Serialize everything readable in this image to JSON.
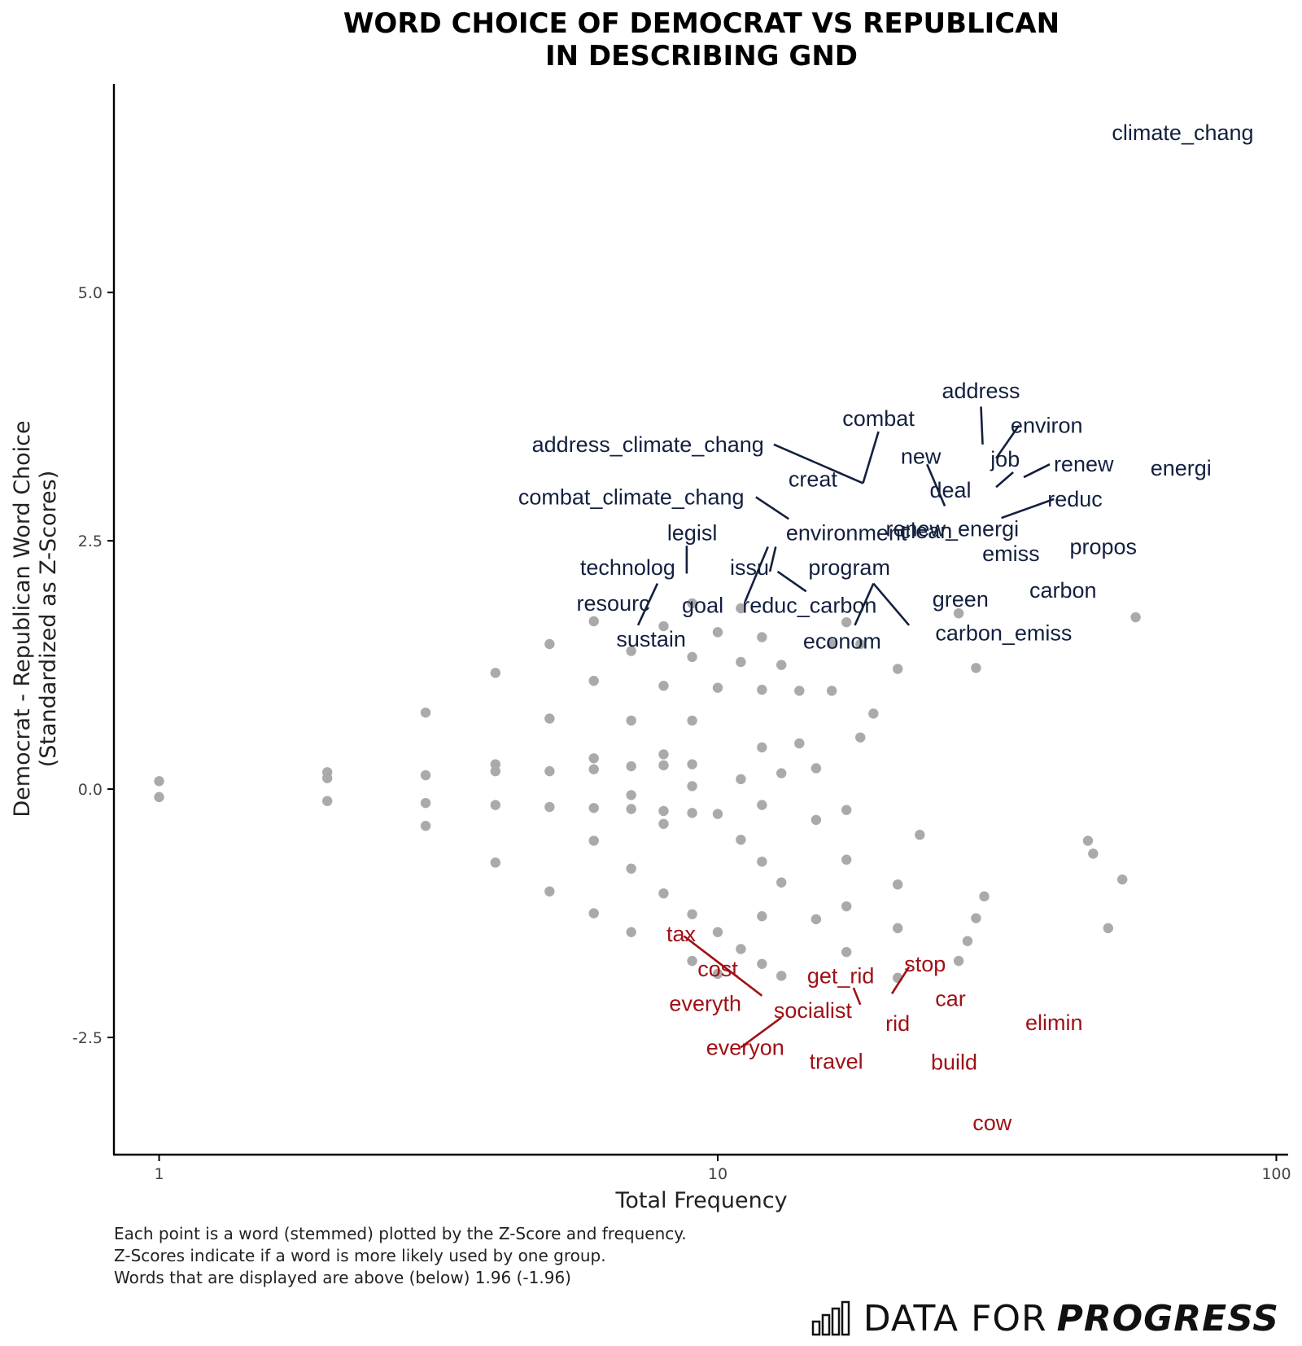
{
  "chart_data": {
    "type": "scatter",
    "title": [
      "WORD CHOICE OF DEMOCRAT VS REPUBLICAN",
      "IN DESCRIBING GND"
    ],
    "xlabel": "Total Frequency",
    "ylabel": [
      "Democrat - Republican Word Choice",
      "(Standardized as Z-Scores)"
    ],
    "x_scale": "log10",
    "xlim": [
      0.83,
      105
    ],
    "ylim": [
      -3.68,
      7.1
    ],
    "x_ticks": [
      1,
      10,
      100
    ],
    "x_tick_labels": [
      "1",
      "10",
      "100"
    ],
    "y_ticks": [
      -2.5,
      0,
      2.5,
      5
    ],
    "y_tick_labels": [
      "-2.5",
      "0.0",
      "2.5",
      "5.0"
    ],
    "grid": false,
    "colors": {
      "points": "#aaaaaa",
      "democrat": "#13203f",
      "republican": "#a01016"
    },
    "points": [
      [
        1,
        0.08
      ],
      [
        1,
        -0.08
      ],
      [
        2,
        0.17
      ],
      [
        2,
        0.11
      ],
      [
        2,
        -0.12
      ],
      [
        3,
        0.77
      ],
      [
        3,
        0.14
      ],
      [
        3,
        -0.14
      ],
      [
        3,
        -0.37
      ],
      [
        4,
        1.17
      ],
      [
        4,
        0.25
      ],
      [
        4,
        0.18
      ],
      [
        4,
        -0.16
      ],
      [
        4,
        -0.74
      ],
      [
        5,
        1.46
      ],
      [
        5,
        0.71
      ],
      [
        5,
        0.18
      ],
      [
        5,
        -0.18
      ],
      [
        5,
        -1.03
      ],
      [
        6,
        1.69
      ],
      [
        6,
        1.09
      ],
      [
        6,
        0.31
      ],
      [
        6,
        0.2
      ],
      [
        6,
        -0.19
      ],
      [
        6,
        -0.52
      ],
      [
        6,
        -1.25
      ],
      [
        7,
        1.39
      ],
      [
        7,
        0.69
      ],
      [
        7,
        0.23
      ],
      [
        7,
        -0.06
      ],
      [
        7,
        -0.2
      ],
      [
        7,
        -0.8
      ],
      [
        7,
        -1.44
      ],
      [
        8,
        1.64
      ],
      [
        8,
        1.04
      ],
      [
        8,
        0.35
      ],
      [
        8,
        0.24
      ],
      [
        8,
        -0.22
      ],
      [
        8,
        -0.35
      ],
      [
        8,
        -1.05
      ],
      [
        9,
        1.87
      ],
      [
        9,
        1.33
      ],
      [
        9,
        0.69
      ],
      [
        9,
        0.25
      ],
      [
        9,
        0.03
      ],
      [
        9,
        -0.24
      ],
      [
        9,
        -1.26
      ],
      [
        9,
        -1.73
      ],
      [
        10,
        1.58
      ],
      [
        10,
        1.02
      ],
      [
        10,
        -0.25
      ],
      [
        10,
        -1.44
      ],
      [
        10,
        -1.86
      ],
      [
        11,
        1.82
      ],
      [
        11,
        1.28
      ],
      [
        11,
        0.1
      ],
      [
        11,
        -0.51
      ],
      [
        11,
        -1.61
      ],
      [
        12,
        1.53
      ],
      [
        12,
        1.0
      ],
      [
        12,
        0.42
      ],
      [
        12,
        -0.16
      ],
      [
        12,
        -0.73
      ],
      [
        12,
        -1.28
      ],
      [
        12,
        -1.76
      ],
      [
        13,
        1.25
      ],
      [
        13,
        0.16
      ],
      [
        13,
        -0.94
      ],
      [
        13,
        -1.88
      ],
      [
        14,
        0.99
      ],
      [
        14,
        0.46
      ],
      [
        15,
        0.21
      ],
      [
        15,
        -0.31
      ],
      [
        15,
        -1.31
      ],
      [
        16,
        0.99
      ],
      [
        16,
        1.46
      ],
      [
        17,
        1.68
      ],
      [
        17,
        -0.21
      ],
      [
        17,
        -0.71
      ],
      [
        17,
        -1.18
      ],
      [
        17,
        -1.64
      ],
      [
        18,
        1.46
      ],
      [
        18,
        0.52
      ],
      [
        19,
        0.76
      ],
      [
        21,
        1.21
      ],
      [
        21,
        -0.96
      ],
      [
        21,
        -1.4
      ],
      [
        21,
        -1.9
      ],
      [
        23,
        -0.46
      ],
      [
        27,
        1.77
      ],
      [
        27,
        -1.73
      ],
      [
        28,
        -1.53
      ],
      [
        29,
        1.22
      ],
      [
        29,
        -1.3
      ],
      [
        30,
        -1.08
      ],
      [
        46,
        -0.52
      ],
      [
        47,
        -0.65
      ],
      [
        50,
        -1.4
      ],
      [
        53,
        -0.91
      ],
      [
        56,
        1.73
      ]
    ],
    "labels": [
      {
        "text": "climate_chang",
        "x": 68,
        "y": 6.61,
        "group": "democrat"
      },
      {
        "text": "address",
        "x": 29.6,
        "y": 4.01,
        "group": "democrat"
      },
      {
        "text": "combat",
        "x": 19.4,
        "y": 3.73,
        "group": "democrat"
      },
      {
        "text": "environ",
        "x": 38.8,
        "y": 3.66,
        "group": "democrat"
      },
      {
        "text": "address_climate_chang",
        "x": 7.5,
        "y": 3.47,
        "group": "democrat"
      },
      {
        "text": "new",
        "x": 23.1,
        "y": 3.35,
        "group": "democrat"
      },
      {
        "text": "job",
        "x": 32.7,
        "y": 3.32,
        "group": "democrat"
      },
      {
        "text": "renew",
        "x": 45.2,
        "y": 3.27,
        "group": "democrat"
      },
      {
        "text": "energi",
        "x": 67.5,
        "y": 3.23,
        "group": "democrat"
      },
      {
        "text": "creat",
        "x": 14.8,
        "y": 3.12,
        "group": "democrat"
      },
      {
        "text": "deal",
        "x": 26.1,
        "y": 3.01,
        "group": "democrat"
      },
      {
        "text": "combat_climate_chang",
        "x": 7.0,
        "y": 2.94,
        "group": "democrat"
      },
      {
        "text": "reduc",
        "x": 43.6,
        "y": 2.92,
        "group": "democrat"
      },
      {
        "text": "legisl",
        "x": 9.0,
        "y": 2.58,
        "group": "democrat"
      },
      {
        "text": "environment",
        "x": 17.0,
        "y": 2.58,
        "group": "democrat"
      },
      {
        "text": "clean",
        "x": 23.6,
        "y": 2.6,
        "group": "democrat"
      },
      {
        "text": "renew_energi",
        "x": 26.3,
        "y": 2.62,
        "group": "democrat"
      },
      {
        "text": "emiss",
        "x": 33.5,
        "y": 2.37,
        "group": "democrat"
      },
      {
        "text": "propos",
        "x": 49.0,
        "y": 2.44,
        "group": "democrat"
      },
      {
        "text": "technolog",
        "x": 6.9,
        "y": 2.23,
        "group": "democrat"
      },
      {
        "text": "issu",
        "x": 11.4,
        "y": 2.23,
        "group": "democrat"
      },
      {
        "text": "program",
        "x": 17.2,
        "y": 2.23,
        "group": "democrat"
      },
      {
        "text": "carbon",
        "x": 41.5,
        "y": 2.0,
        "group": "democrat"
      },
      {
        "text": "green",
        "x": 27.2,
        "y": 1.91,
        "group": "democrat"
      },
      {
        "text": "resourc",
        "x": 6.5,
        "y": 1.87,
        "group": "democrat"
      },
      {
        "text": "goal",
        "x": 9.4,
        "y": 1.85,
        "group": "democrat"
      },
      {
        "text": "reduc_carbon",
        "x": 14.6,
        "y": 1.85,
        "group": "democrat"
      },
      {
        "text": "carbon_emiss",
        "x": 32.5,
        "y": 1.57,
        "group": "democrat"
      },
      {
        "text": "sustain",
        "x": 7.6,
        "y": 1.51,
        "group": "democrat"
      },
      {
        "text": "econom",
        "x": 16.7,
        "y": 1.49,
        "group": "democrat"
      },
      {
        "text": "tax",
        "x": 8.6,
        "y": -1.46,
        "group": "republican"
      },
      {
        "text": "stop",
        "x": 23.5,
        "y": -1.76,
        "group": "republican"
      },
      {
        "text": "cost",
        "x": 10.0,
        "y": -1.81,
        "group": "republican"
      },
      {
        "text": "get_rid",
        "x": 16.6,
        "y": -1.88,
        "group": "republican"
      },
      {
        "text": "car",
        "x": 26.1,
        "y": -2.11,
        "group": "republican"
      },
      {
        "text": "everyth",
        "x": 9.5,
        "y": -2.16,
        "group": "republican"
      },
      {
        "text": "socialist",
        "x": 14.8,
        "y": -2.23,
        "group": "republican"
      },
      {
        "text": "rid",
        "x": 21.0,
        "y": -2.36,
        "group": "republican"
      },
      {
        "text": "elimin",
        "x": 40.0,
        "y": -2.35,
        "group": "republican"
      },
      {
        "text": "everyon",
        "x": 11.2,
        "y": -2.6,
        "group": "republican"
      },
      {
        "text": "travel",
        "x": 16.3,
        "y": -2.74,
        "group": "republican"
      },
      {
        "text": "build",
        "x": 26.5,
        "y": -2.75,
        "group": "republican"
      },
      {
        "text": "cow",
        "x": 31.0,
        "y": -3.36,
        "group": "republican"
      }
    ],
    "leaders": [
      {
        "group": "democrat",
        "from": [
          29.6,
          3.85
        ],
        "to": [
          29.8,
          3.47
        ]
      },
      {
        "group": "democrat",
        "from": [
          19.4,
          3.6
        ],
        "to": [
          18.2,
          3.08
        ]
      },
      {
        "group": "democrat",
        "from": [
          12.6,
          3.47
        ],
        "to": [
          18.2,
          3.08
        ]
      },
      {
        "group": "democrat",
        "from": [
          34.6,
          3.66
        ],
        "to": [
          31.5,
          3.33
        ]
      },
      {
        "group": "democrat",
        "from": [
          23.7,
          3.27
        ],
        "to": [
          25.5,
          2.85
        ]
      },
      {
        "group": "democrat",
        "from": [
          33.8,
          3.19
        ],
        "to": [
          31.5,
          3.04
        ]
      },
      {
        "group": "democrat",
        "from": [
          39.3,
          3.27
        ],
        "to": [
          35.3,
          3.14
        ]
      },
      {
        "group": "democrat",
        "from": [
          40.0,
          2.92
        ],
        "to": [
          32.2,
          2.73
        ]
      },
      {
        "group": "democrat",
        "from": [
          11.7,
          2.94
        ],
        "to": [
          13.4,
          2.72
        ]
      },
      {
        "group": "democrat",
        "from": [
          8.8,
          2.45
        ],
        "to": [
          8.8,
          2.17
        ]
      },
      {
        "group": "democrat",
        "from": [
          12.3,
          2.44
        ],
        "to": [
          11.2,
          1.89
        ]
      },
      {
        "group": "democrat",
        "from": [
          12.7,
          2.44
        ],
        "to": [
          12.4,
          2.19
        ]
      },
      {
        "group": "democrat",
        "from": [
          12.8,
          2.19
        ],
        "to": [
          14.4,
          1.99
        ]
      },
      {
        "group": "democrat",
        "from": [
          19.0,
          2.07
        ],
        "to": [
          17.6,
          1.65
        ]
      },
      {
        "group": "democrat",
        "from": [
          19.0,
          2.07
        ],
        "to": [
          22.0,
          1.65
        ]
      },
      {
        "group": "democrat",
        "from": [
          7.8,
          2.07
        ],
        "to": [
          7.2,
          1.65
        ]
      },
      {
        "group": "republican",
        "from": [
          8.7,
          -1.48
        ],
        "to": [
          12.0,
          -2.08
        ]
      },
      {
        "group": "republican",
        "from": [
          11.0,
          -2.6
        ],
        "to": [
          13.0,
          -2.3
        ]
      },
      {
        "group": "republican",
        "from": [
          17.5,
          -2.0
        ],
        "to": [
          18.0,
          -2.17
        ]
      },
      {
        "group": "republican",
        "from": [
          22.0,
          -1.79
        ],
        "to": [
          20.5,
          -2.06
        ]
      }
    ]
  },
  "caption": [
    "Each point is a word (stemmed) plotted by the Z-Score and frequency.",
    "Z-Scores indicate if a word is more likely used by one group.",
    "Words that are displayed are above (below) 1.96 (-1.96)"
  ],
  "brand": {
    "logo_icon": "bar-chart-icon",
    "plain": "DATA FOR",
    "strong": "PROGRESS"
  }
}
